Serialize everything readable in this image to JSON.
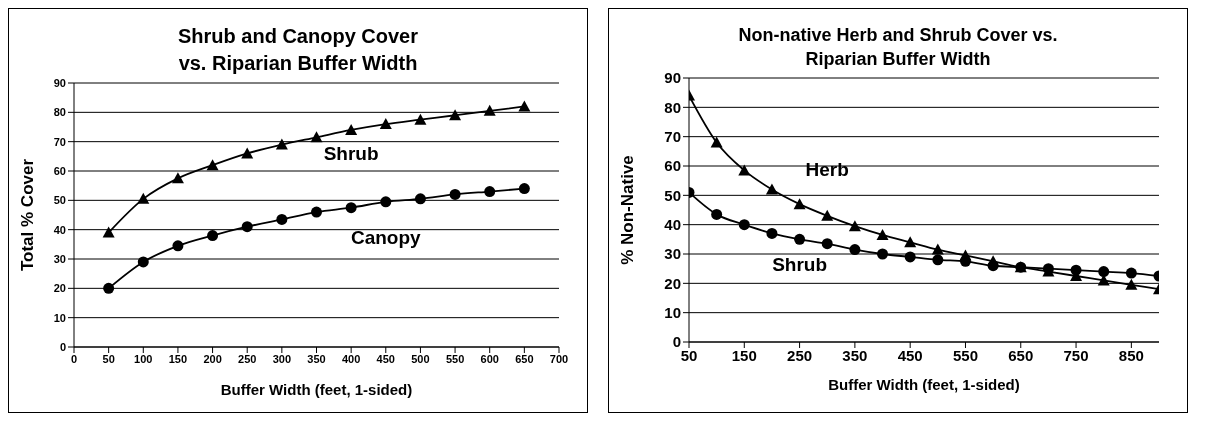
{
  "chart_data": [
    {
      "type": "line",
      "title": "Shrub and Canopy Cover vs. Riparian Buffer Width",
      "xlabel": "Buffer Width (feet, 1-sided)",
      "ylabel": "Total % Cover",
      "x": [
        50,
        100,
        150,
        200,
        250,
        300,
        350,
        400,
        450,
        500,
        550,
        600,
        650
      ],
      "series": [
        {
          "name": "Shrub",
          "color": "#000000",
          "marker": "triangle",
          "values": [
            39,
            50.5,
            57.5,
            62,
            66,
            69,
            71.5,
            74,
            76,
            77.5,
            79,
            80.5,
            82
          ]
        },
        {
          "name": "Canopy",
          "color": "#000000",
          "marker": "circle",
          "values": [
            20,
            29,
            34.5,
            38,
            41,
            43.5,
            46,
            47.5,
            49.5,
            50.5,
            52,
            53,
            54
          ]
        }
      ],
      "xlim": [
        0,
        700
      ],
      "xticks": [
        0,
        50,
        100,
        150,
        200,
        250,
        300,
        350,
        400,
        450,
        500,
        550,
        600,
        650,
        700
      ],
      "ylim": [
        0,
        90
      ],
      "yticks": [
        0,
        10,
        20,
        30,
        40,
        50,
        60,
        70,
        80,
        90
      ],
      "grid": "y",
      "legend": false
    },
    {
      "type": "line",
      "title": "Non-native Herb and Shrub Cover vs. Riparian Buffer Width",
      "xlabel": "Buffer Width (feet, 1-sided)",
      "ylabel": "% Non-Native",
      "x": [
        50,
        100,
        150,
        200,
        250,
        300,
        350,
        400,
        450,
        500,
        550,
        600,
        650,
        700,
        750,
        800,
        850,
        900
      ],
      "series": [
        {
          "name": "Herb",
          "color": "#000000",
          "marker": "triangle",
          "values": [
            84,
            68,
            58.5,
            52,
            47,
            43,
            39.5,
            36.5,
            34,
            31.5,
            29.5,
            27.5,
            25.5,
            24,
            22.5,
            21,
            19.5,
            18
          ]
        },
        {
          "name": "Shrub",
          "color": "#000000",
          "marker": "circle",
          "values": [
            51,
            43.5,
            40,
            37,
            35,
            33.5,
            31.5,
            30,
            29,
            28,
            27.5,
            26,
            25.5,
            25,
            24.5,
            24,
            23.5,
            22.5
          ]
        }
      ],
      "xlim": [
        50,
        900
      ],
      "xticks": [
        50,
        150,
        250,
        350,
        450,
        550,
        650,
        750,
        850
      ],
      "ylim": [
        0,
        90
      ],
      "yticks": [
        0,
        10,
        20,
        30,
        40,
        50,
        60,
        70,
        80,
        90
      ],
      "grid": "y",
      "legend": false
    }
  ]
}
